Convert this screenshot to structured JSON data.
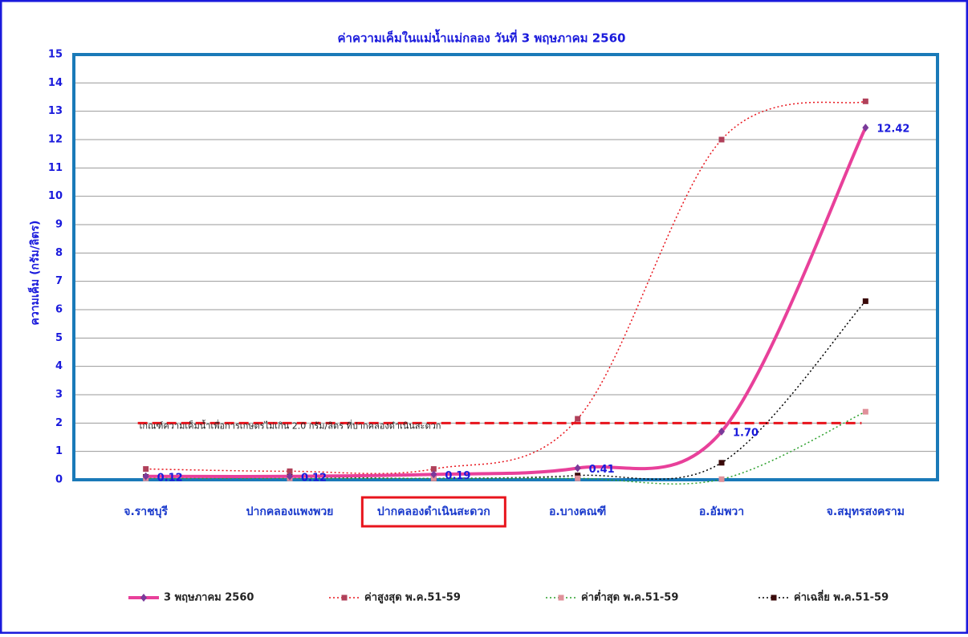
{
  "chart_data": {
    "type": "line",
    "title": "ค่าความเค็มในแม่น้ำแม่กลอง วันที่ 3 พฤษภาคม 2560",
    "y_label": "ความเค็ม (กรัม/ลิตร)",
    "categories": [
      "จ.ราชบุรี",
      "ปากคลองแพงพวย",
      "ปากคลองดำเนินสะดวก",
      "อ.บางคณฑี",
      "อ.อัมพวา",
      "จ.สมุทรสงคราม"
    ],
    "highlighted_category": "ปากคลองดำเนินสะดวก",
    "ylim": [
      0,
      15
    ],
    "yticks": [
      0,
      1,
      2,
      3,
      4,
      5,
      6,
      7,
      8,
      9,
      10,
      11,
      12,
      13,
      14,
      15
    ],
    "grid": true,
    "threshold": {
      "value": 2,
      "label": "เกณฑ์ความเค็มน้ำเพื่อการเกษตรไม่เกิน 2.0 กรัม/ลิตร ที่ปากคลองดำเนินสะดวก",
      "color": "#e8141c"
    },
    "series": [
      {
        "name": "3 พฤษภาคม 2560",
        "color": "#e8409a",
        "marker_color": "#7a3a9a",
        "style": "solid",
        "width": 4,
        "values": [
          0.12,
          0.12,
          0.19,
          0.41,
          1.7,
          12.42
        ],
        "value_labels": [
          "0.12",
          "0.12",
          "0.19",
          "0.41",
          "1.70",
          "12.42"
        ]
      },
      {
        "name": "ค่าสูงสุด พ.ค.51-59",
        "color": "#e8141c",
        "marker_color": "#b0405a",
        "style": "dotted",
        "width": 1.5,
        "values": [
          0.38,
          0.3,
          0.38,
          2.15,
          12.0,
          13.35
        ]
      },
      {
        "name": "ค่าต่ำสุด พ.ค.51-59",
        "color": "#2ca02c",
        "marker_color": "#e0909a",
        "style": "dotted",
        "width": 1.5,
        "values": [
          0.05,
          0.05,
          0.05,
          0.05,
          0.02,
          2.4
        ]
      },
      {
        "name": "ค่าเฉลี่ย พ.ค.51-59",
        "color": "#000000",
        "marker_color": "#3a0a0a",
        "style": "dotted",
        "width": 1.5,
        "values": [
          0.1,
          0.1,
          0.05,
          0.15,
          0.6,
          6.3
        ]
      }
    ]
  }
}
